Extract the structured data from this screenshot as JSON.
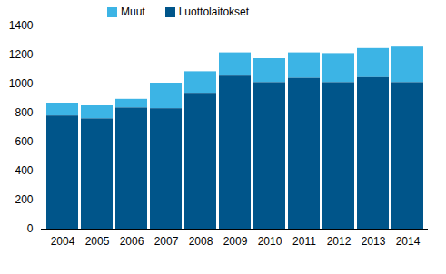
{
  "chart_data": {
    "type": "bar",
    "stacked": true,
    "categories": [
      "2004",
      "2005",
      "2006",
      "2007",
      "2008",
      "2009",
      "2010",
      "2011",
      "2012",
      "2013",
      "2014"
    ],
    "series": [
      {
        "name": "Muut",
        "color": "#3cb4e5",
        "values": [
          85,
          90,
          60,
          175,
          155,
          160,
          165,
          175,
          200,
          200,
          245
        ]
      },
      {
        "name": "Luottolaitokset",
        "color": "#00558a",
        "values": [
          780,
          760,
          835,
          830,
          930,
          1055,
          1010,
          1040,
          1010,
          1045,
          1010
        ]
      }
    ],
    "ylim": [
      0,
      1400
    ],
    "yticks": [
      0,
      200,
      400,
      600,
      800,
      1000,
      1200,
      1400
    ],
    "grid": false,
    "legend": "top"
  }
}
